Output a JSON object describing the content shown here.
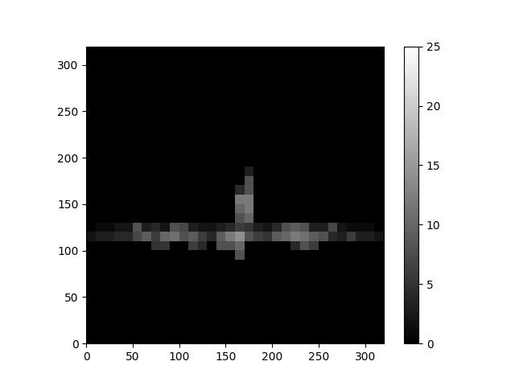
{
  "chart_data": {
    "type": "heatmap",
    "color": "gray",
    "xlim": [
      0,
      320
    ],
    "ylim": [
      0,
      320
    ],
    "xticks": [
      0,
      50,
      100,
      150,
      200,
      250,
      300
    ],
    "yticks": [
      0,
      50,
      100,
      150,
      200,
      250,
      300
    ],
    "color_range": [
      0,
      25
    ],
    "color_ticks": [
      0,
      5,
      10,
      15,
      20,
      25
    ],
    "cells": [
      [
        0,
        0,
        0,
        0,
        0,
        0,
        0,
        0,
        0,
        0,
        0,
        0,
        0,
        0,
        0,
        0,
        0,
        0,
        0,
        0,
        0,
        0,
        0,
        0,
        0,
        0,
        0,
        0,
        0,
        0,
        0,
        0
      ],
      [
        0,
        0,
        0,
        0,
        0,
        0,
        0,
        0,
        0,
        0,
        0,
        0,
        0,
        0,
        0,
        0,
        0,
        0,
        0,
        0,
        0,
        0,
        0,
        0,
        0,
        0,
        0,
        0,
        0,
        0,
        0,
        0
      ],
      [
        0,
        0,
        0,
        0,
        0,
        0,
        0,
        0,
        0,
        0,
        0,
        0,
        0,
        0,
        0,
        0,
        0,
        0,
        0,
        0,
        0,
        0,
        0,
        0,
        0,
        0,
        0,
        0,
        0,
        0,
        0,
        0
      ],
      [
        0,
        0,
        0,
        0,
        0,
        0,
        0,
        0,
        0,
        0,
        0,
        0,
        0,
        0,
        0,
        0,
        0,
        0,
        0,
        0,
        0,
        0,
        0,
        0,
        0,
        0,
        0,
        0,
        0,
        0,
        0,
        0
      ],
      [
        0,
        0,
        0,
        0,
        0,
        0,
        0,
        0,
        0,
        0,
        0,
        0,
        0,
        0,
        0,
        0,
        0,
        0,
        0,
        0,
        0,
        0,
        0,
        0,
        0,
        0,
        0,
        0,
        0,
        0,
        0,
        0
      ],
      [
        0,
        0,
        0,
        0,
        0,
        0,
        0,
        0,
        0,
        0,
        0,
        0,
        0,
        0,
        0,
        0,
        0,
        0,
        0,
        0,
        0,
        0,
        0,
        0,
        0,
        0,
        0,
        0,
        0,
        0,
        0,
        0
      ],
      [
        0,
        0,
        0,
        0,
        0,
        0,
        0,
        0,
        0,
        0,
        0,
        0,
        0,
        0,
        0,
        0,
        0,
        0,
        0,
        0,
        0,
        0,
        0,
        0,
        0,
        0,
        0,
        0,
        0,
        0,
        0,
        0
      ],
      [
        0,
        0,
        0,
        0,
        0,
        0,
        0,
        0,
        0,
        0,
        0,
        0,
        0,
        0,
        0,
        0,
        0,
        0,
        0,
        0,
        0,
        0,
        0,
        0,
        0,
        0,
        0,
        0,
        0,
        0,
        0,
        0
      ],
      [
        0,
        0,
        0,
        0,
        0,
        0,
        0,
        0,
        0,
        0,
        0,
        0,
        0,
        0,
        0,
        0,
        0,
        0,
        0,
        0,
        0,
        0,
        0,
        0,
        0,
        0,
        0,
        0,
        0,
        0,
        0,
        0
      ],
      [
        0,
        0,
        0,
        0,
        0,
        0,
        0,
        0,
        0,
        0,
        0,
        0,
        0,
        0,
        0,
        0,
        8,
        0,
        0,
        0,
        0,
        0,
        0,
        0,
        0,
        0,
        0,
        0,
        0,
        0,
        0,
        0
      ],
      [
        0,
        0,
        0,
        0,
        0,
        0,
        0,
        5,
        5,
        0,
        0,
        6,
        4,
        0,
        8,
        8,
        10,
        0,
        0,
        0,
        0,
        0,
        4,
        8,
        6,
        0,
        0,
        0,
        0,
        0,
        0,
        0
      ],
      [
        2,
        3,
        3,
        4,
        4,
        7,
        9,
        6,
        10,
        11,
        8,
        9,
        6,
        4,
        9,
        12,
        14,
        8,
        6,
        5,
        9,
        10,
        12,
        11,
        9,
        8,
        4,
        3,
        6,
        3,
        3,
        2
      ],
      [
        0,
        1,
        1,
        2,
        2,
        8,
        3,
        4,
        2,
        8,
        7,
        3,
        2,
        2,
        3,
        4,
        6,
        5,
        3,
        2,
        4,
        8,
        9,
        8,
        3,
        3,
        7,
        2,
        1,
        1,
        1,
        0
      ],
      [
        0,
        0,
        0,
        0,
        0,
        0,
        0,
        0,
        0,
        0,
        0,
        0,
        0,
        0,
        0,
        0,
        8,
        10,
        0,
        0,
        0,
        0,
        0,
        0,
        0,
        0,
        0,
        0,
        0,
        0,
        0,
        0
      ],
      [
        0,
        0,
        0,
        0,
        0,
        0,
        0,
        0,
        0,
        0,
        0,
        0,
        0,
        0,
        0,
        0,
        10,
        12,
        0,
        0,
        0,
        0,
        0,
        0,
        0,
        0,
        0,
        0,
        0,
        0,
        0,
        0
      ],
      [
        0,
        0,
        0,
        0,
        0,
        0,
        0,
        0,
        0,
        0,
        0,
        0,
        0,
        0,
        0,
        0,
        12,
        12,
        0,
        0,
        0,
        0,
        0,
        0,
        0,
        0,
        0,
        0,
        0,
        0,
        0,
        0
      ],
      [
        0,
        0,
        0,
        0,
        0,
        0,
        0,
        0,
        0,
        0,
        0,
        0,
        0,
        0,
        0,
        0,
        4,
        8,
        0,
        0,
        0,
        0,
        0,
        0,
        0,
        0,
        0,
        0,
        0,
        0,
        0,
        0
      ],
      [
        0,
        0,
        0,
        0,
        0,
        0,
        0,
        0,
        0,
        0,
        0,
        0,
        0,
        0,
        0,
        0,
        0,
        8,
        0,
        0,
        0,
        0,
        0,
        0,
        0,
        0,
        0,
        0,
        0,
        0,
        0,
        0
      ],
      [
        0,
        0,
        0,
        0,
        0,
        0,
        0,
        0,
        0,
        0,
        0,
        0,
        0,
        0,
        0,
        0,
        0,
        3,
        0,
        0,
        0,
        0,
        0,
        0,
        0,
        0,
        0,
        0,
        0,
        0,
        0,
        0
      ],
      [
        0,
        0,
        0,
        0,
        0,
        0,
        0,
        0,
        0,
        0,
        0,
        0,
        0,
        0,
        0,
        0,
        0,
        0,
        0,
        0,
        0,
        0,
        0,
        0,
        0,
        0,
        0,
        0,
        0,
        0,
        0,
        0
      ],
      [
        0,
        0,
        0,
        0,
        0,
        0,
        0,
        0,
        0,
        0,
        0,
        0,
        0,
        0,
        0,
        0,
        0,
        0,
        0,
        0,
        0,
        0,
        0,
        0,
        0,
        0,
        0,
        0,
        0,
        0,
        0,
        0
      ],
      [
        0,
        0,
        0,
        0,
        0,
        0,
        0,
        0,
        0,
        0,
        0,
        0,
        0,
        0,
        0,
        0,
        0,
        0,
        0,
        0,
        0,
        0,
        0,
        0,
        0,
        0,
        0,
        0,
        0,
        0,
        0,
        0
      ],
      [
        0,
        0,
        0,
        0,
        0,
        0,
        0,
        0,
        0,
        0,
        0,
        0,
        0,
        0,
        0,
        0,
        0,
        0,
        0,
        0,
        0,
        0,
        0,
        0,
        0,
        0,
        0,
        0,
        0,
        0,
        0,
        0
      ],
      [
        0,
        0,
        0,
        0,
        0,
        0,
        0,
        0,
        0,
        0,
        0,
        0,
        0,
        0,
        0,
        0,
        0,
        0,
        0,
        0,
        0,
        0,
        0,
        0,
        0,
        0,
        0,
        0,
        0,
        0,
        0,
        0
      ],
      [
        0,
        0,
        0,
        0,
        0,
        0,
        0,
        0,
        0,
        0,
        0,
        0,
        0,
        0,
        0,
        0,
        0,
        0,
        0,
        0,
        0,
        0,
        0,
        0,
        0,
        0,
        0,
        0,
        0,
        0,
        0,
        0
      ],
      [
        0,
        0,
        0,
        0,
        0,
        0,
        0,
        0,
        0,
        0,
        0,
        0,
        0,
        0,
        0,
        0,
        0,
        0,
        0,
        0,
        0,
        0,
        0,
        0,
        0,
        0,
        0,
        0,
        0,
        0,
        0,
        0
      ],
      [
        0,
        0,
        0,
        0,
        0,
        0,
        0,
        0,
        0,
        0,
        0,
        0,
        0,
        0,
        0,
        0,
        0,
        0,
        0,
        0,
        0,
        0,
        0,
        0,
        0,
        0,
        0,
        0,
        0,
        0,
        0,
        0
      ],
      [
        0,
        0,
        0,
        0,
        0,
        0,
        0,
        0,
        0,
        0,
        0,
        0,
        0,
        0,
        0,
        0,
        0,
        0,
        0,
        0,
        0,
        0,
        0,
        0,
        0,
        0,
        0,
        0,
        0,
        0,
        0,
        0
      ],
      [
        0,
        0,
        0,
        0,
        0,
        0,
        0,
        0,
        0,
        0,
        0,
        0,
        0,
        0,
        0,
        0,
        0,
        0,
        0,
        0,
        0,
        0,
        0,
        0,
        0,
        0,
        0,
        0,
        0,
        0,
        0,
        0
      ],
      [
        0,
        0,
        0,
        0,
        0,
        0,
        0,
        0,
        0,
        0,
        0,
        0,
        0,
        0,
        0,
        0,
        0,
        0,
        0,
        0,
        0,
        0,
        0,
        0,
        0,
        0,
        0,
        0,
        0,
        0,
        0,
        0
      ],
      [
        0,
        0,
        0,
        0,
        0,
        0,
        0,
        0,
        0,
        0,
        0,
        0,
        0,
        0,
        0,
        0,
        0,
        0,
        0,
        0,
        0,
        0,
        0,
        0,
        0,
        0,
        0,
        0,
        0,
        0,
        0,
        0
      ],
      [
        0,
        0,
        0,
        0,
        0,
        0,
        0,
        0,
        0,
        0,
        0,
        0,
        0,
        0,
        0,
        0,
        0,
        0,
        0,
        0,
        0,
        0,
        0,
        0,
        0,
        0,
        0,
        0,
        0,
        0,
        0,
        0
      ]
    ]
  }
}
